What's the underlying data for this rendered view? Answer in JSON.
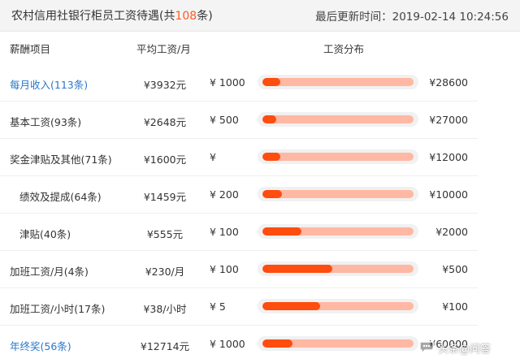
{
  "header": {
    "title_prefix": "农村信用社银行柜员工资待遇(共",
    "title_count": "108",
    "title_suffix": "条)",
    "updated": "最后更新时间：2019-02-14 10:24:56"
  },
  "columns": {
    "item": "薪酬项目",
    "avg": "平均工资/月",
    "dist": "工资分布"
  },
  "rows": [
    {
      "name": "每月收入(113条)",
      "avg": "¥3932元",
      "min": "¥ 1000",
      "max": "¥28600",
      "fill": 0.12
    },
    {
      "name": "基本工资(93条)",
      "avg": "¥2648元",
      "min": "¥ 500",
      "max": "¥27000",
      "fill": 0.09
    },
    {
      "name": "奖金津贴及其他(71条)",
      "avg": "¥1600元",
      "min": "¥",
      "max": "¥12000",
      "fill": 0.12
    },
    {
      "name": "绩效及提成(64条)",
      "avg": "¥1459元",
      "min": "¥ 200",
      "max": "¥10000",
      "fill": 0.13
    },
    {
      "name": "津贴(40条)",
      "avg": "¥555元",
      "min": "¥ 100",
      "max": "¥2000",
      "fill": 0.26
    },
    {
      "name": "加班工资/月(4条)",
      "avg": "¥230/月",
      "min": "¥ 100",
      "max": "¥500",
      "fill": 0.46
    },
    {
      "name": "加班工资/小时(17条)",
      "avg": "¥38/小时",
      "min": "¥ 5",
      "max": "¥100",
      "fill": 0.38
    },
    {
      "name": "年终奖(56条)",
      "avg": "¥12714元",
      "min": "¥ 1000",
      "max": "¥60000",
      "fill": 0.2
    }
  ],
  "watermark": {
    "text": "头条@问答",
    "icon": "speech-bubble-icon"
  },
  "colors": {
    "accent": "#ff4c0f",
    "track": "#ffb8a3",
    "link": "#2a78c8",
    "count": "#ff5a1f"
  }
}
